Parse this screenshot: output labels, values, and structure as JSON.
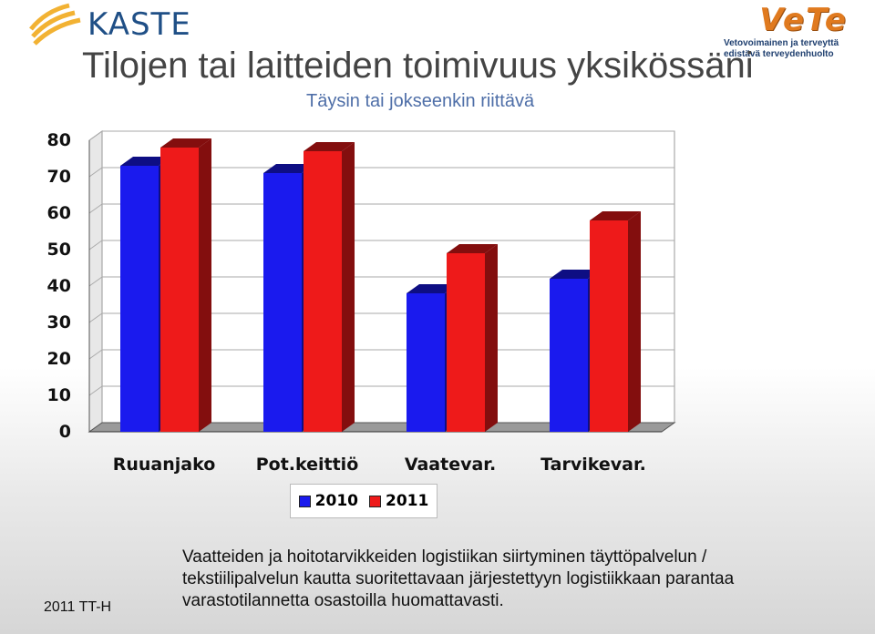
{
  "header": {
    "kaste_logo": "KASTE",
    "vete_logo": "VeTe",
    "vete_tagline_1": "Vetovoimainen ja terveyttä",
    "vete_tagline_2": "edistävä terveydenhuolto"
  },
  "title": "Tilojen tai laitteiden toimivuus yksikössäni",
  "subtitle": "Täysin tai jokseenkin riittävä",
  "chart_data": {
    "type": "bar",
    "categories": [
      "Ruuanjako",
      "Pot.keittiö",
      "Vaatevar.",
      "Tarvikevar."
    ],
    "series": [
      {
        "name": "2010",
        "values": [
          73,
          71,
          38,
          42
        ],
        "color": "#1a1aee"
      },
      {
        "name": "2011",
        "values": [
          78,
          77,
          49,
          58
        ],
        "color": "#ee1a1a"
      }
    ],
    "ylim": [
      0,
      80
    ],
    "yticks": [
      0,
      10,
      20,
      30,
      40,
      50,
      60,
      70,
      80
    ],
    "grid": true,
    "legend_position": "bottom",
    "three_d": true
  },
  "legend": {
    "label_2010": "2010",
    "label_2011": "2011"
  },
  "footer": {
    "left": "2011 TT-H",
    "caption_lines": [
      "Vaatteiden ja hoitotarvikkeiden logistiikan siirtyminen täyttöpalvelun /",
      "tekstiilipalvelun kautta suoritettavaan järjestettyyn logistiikkaan parantaa",
      "varastotilannetta osastoilla huomattavasti."
    ]
  }
}
